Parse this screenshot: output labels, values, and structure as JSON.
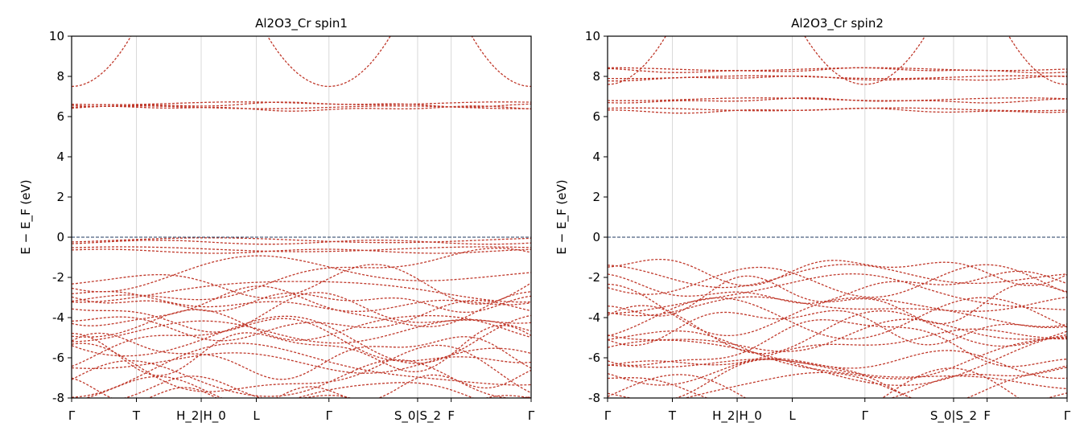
{
  "colors": {
    "band": "#c0392b",
    "band_line": "#8a8a8a",
    "fermi_line": "#1f3a5f",
    "hsym_line": "#d9d9d9",
    "axis": "#000000"
  },
  "chart_data": [
    {
      "type": "line",
      "title": "Al2O3_Cr  spin1",
      "ylabel": "E − E_F  (eV)",
      "xlabel": "",
      "ylim": [
        -8,
        10
      ],
      "yticks": [
        10,
        8,
        6,
        4,
        2,
        0,
        -2,
        -4,
        -6,
        -8
      ],
      "grid": false,
      "k_path": {
        "labels": [
          "Γ",
          "T",
          "H_2|H_0",
          "L",
          "Γ",
          "S_0|S_2",
          "F",
          "Γ"
        ],
        "positions": [
          0,
          0.141,
          0.282,
          0.402,
          0.56,
          0.753,
          0.826,
          1.0
        ]
      },
      "fermi_level": 0,
      "bands_summary": {
        "conduction_min": 7.5,
        "conduction_min_at": "Γ",
        "flat_impurity_bands": [
          6.4,
          6.6
        ],
        "valence_top_bands": [
          -0.15,
          -0.6
        ],
        "valence_manifold_range": [
          -8,
          -1.7
        ]
      }
    },
    {
      "type": "line",
      "title": "Al2O3_Cr  spin2",
      "ylabel": "E − E_F  (eV)",
      "xlabel": "",
      "ylim": [
        -8,
        10
      ],
      "yticks": [
        10,
        8,
        6,
        4,
        2,
        0,
        -2,
        -4,
        -6,
        -8
      ],
      "grid": false,
      "k_path": {
        "labels": [
          "Γ",
          "T",
          "H_2|H_0",
          "L",
          "Γ",
          "S_0|S_2",
          "F",
          "Γ"
        ],
        "positions": [
          0,
          0.141,
          0.282,
          0.402,
          0.56,
          0.753,
          0.826,
          1.0
        ]
      },
      "fermi_level": 0,
      "bands_summary": {
        "conduction_min": 7.6,
        "conduction_min_at": "Γ",
        "flat_impurity_bands": [
          6.3,
          6.8,
          7.9,
          8.3
        ],
        "valence_top_bands": [],
        "valence_manifold_range": [
          -8,
          -1.6
        ]
      }
    }
  ]
}
